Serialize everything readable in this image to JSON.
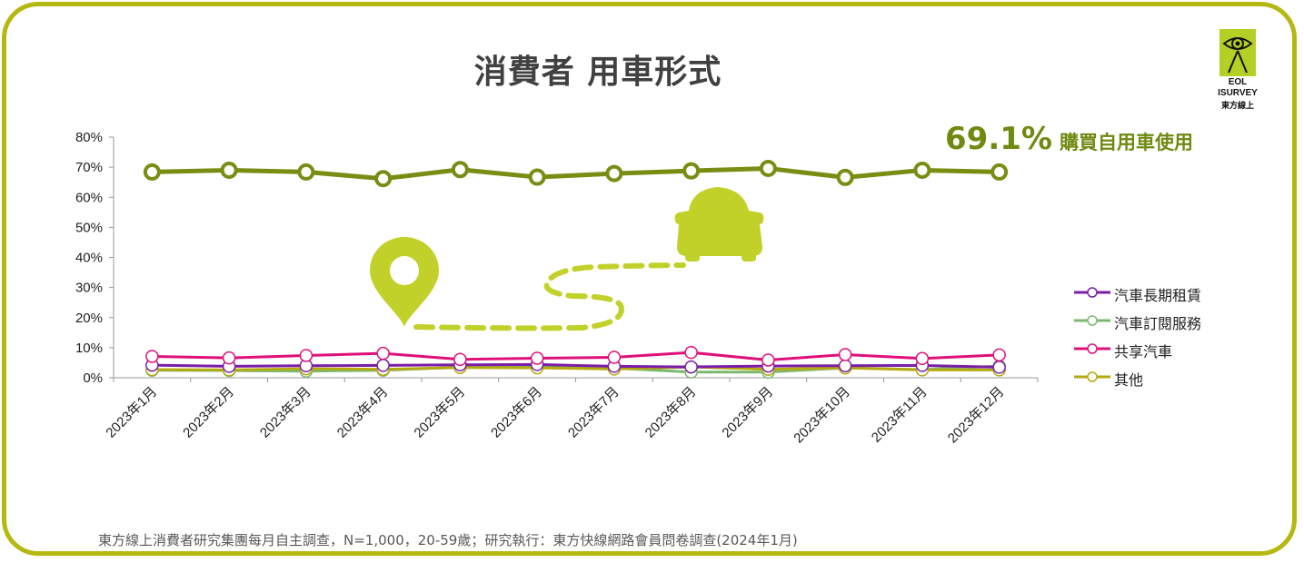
{
  "title": "消費者 用車形式",
  "callout": {
    "value": "69.1%",
    "text": "購買自用車使用"
  },
  "footer": "東方線上消費者研究集團每月自主調查，N=1,000，20-59歲；研究執行：東方快線網路會員問卷調查(2024年1月)",
  "logo": {
    "line1": "EOL",
    "line2": "ISURVEY",
    "line3": "東方線上"
  },
  "colors": {
    "frame": "#b5b810",
    "accent": "#c2d12a",
    "callout": "#6f8a10"
  },
  "chart_data": {
    "type": "line",
    "title": "消費者 用車形式",
    "xlabel": "",
    "ylabel": "",
    "ylim": [
      0,
      80
    ],
    "yticks": [
      "0%",
      "10%",
      "20%",
      "30%",
      "40%",
      "50%",
      "60%",
      "70%",
      "80%"
    ],
    "grid": false,
    "legend_position": "right",
    "categories": [
      "2023年1月",
      "2023年2月",
      "2023年3月",
      "2023年4月",
      "2023年5月",
      "2023年6月",
      "2023年7月",
      "2023年8月",
      "2023年9月",
      "2023年10月",
      "2023年11月",
      "2023年12月"
    ],
    "series": [
      {
        "name": "購買自用車使用",
        "color": "#7a8c12",
        "values": [
          68.4,
          69.0,
          68.4,
          66.2,
          69.2,
          66.7,
          67.9,
          68.8,
          69.6,
          66.6,
          69.0,
          68.4
        ],
        "in_legend": false
      },
      {
        "name": "汽車長期租賃",
        "color": "#7a1ea6",
        "values": [
          4.2,
          3.8,
          4.0,
          4.1,
          4.3,
          4.4,
          3.8,
          3.6,
          3.9,
          4.0,
          4.1,
          3.5
        ],
        "in_legend": true
      },
      {
        "name": "汽車訂閱服務",
        "color": "#7cb86f",
        "values": [
          2.5,
          2.4,
          2.2,
          2.5,
          3.5,
          3.6,
          3.2,
          1.9,
          1.9,
          3.3,
          2.7,
          3.9
        ],
        "in_legend": true
      },
      {
        "name": "共享汽車",
        "color": "#e0107a",
        "values": [
          7.1,
          6.6,
          7.4,
          8.1,
          6.1,
          6.5,
          6.8,
          8.4,
          5.9,
          7.7,
          6.4,
          7.6
        ],
        "in_legend": true
      },
      {
        "name": "其他",
        "color": "#b5aa10",
        "values": [
          2.7,
          2.6,
          3.0,
          2.8,
          3.4,
          3.3,
          2.9,
          3.6,
          2.8,
          3.3,
          2.6,
          2.6
        ],
        "in_legend": true
      }
    ]
  },
  "illustration": {
    "icons": [
      "map-pin-icon",
      "car-icon",
      "dashed-route"
    ]
  }
}
